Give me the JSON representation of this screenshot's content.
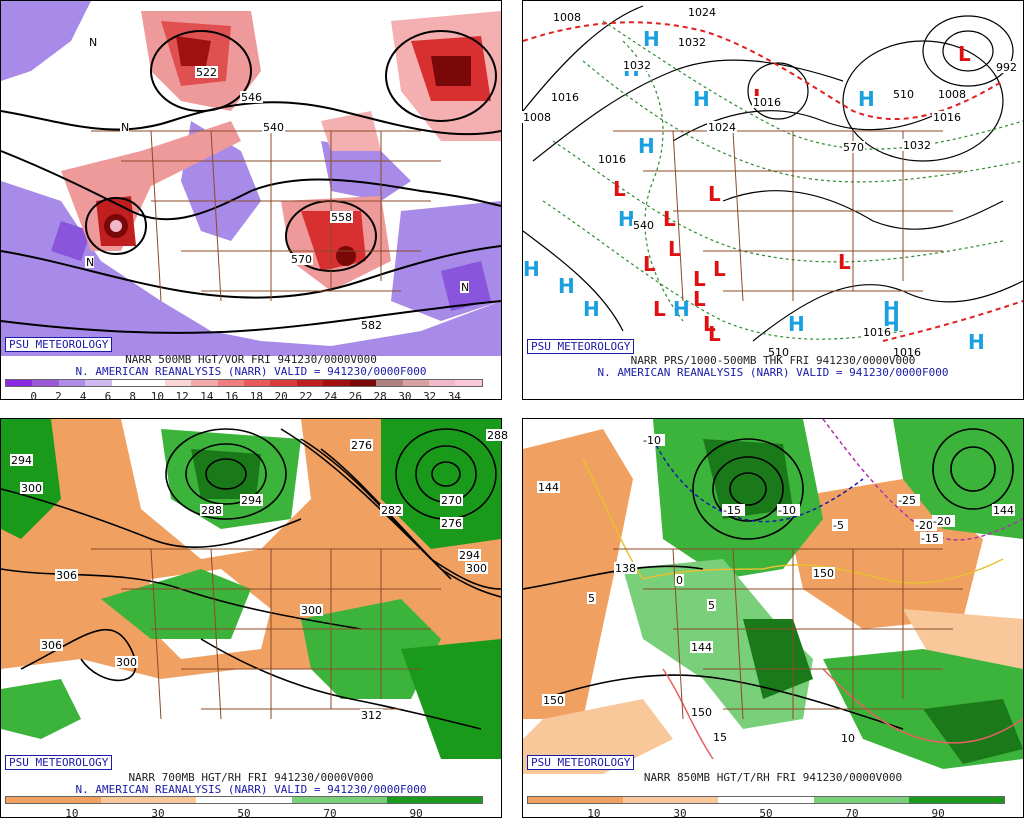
{
  "panels": [
    {
      "badge": "PSU METEOROLOGY",
      "title_line1": "NARR 500MB HGT/VOR FRI 941230/0000V000",
      "title_line2": "N. AMERICAN REANALYSIS (NARR) VALID = 941230/0000F000",
      "colorbar_labels": [
        "0",
        "2",
        "4",
        "6",
        "8",
        "10",
        "12",
        "14",
        "16",
        "18",
        "20",
        "22",
        "24",
        "26",
        "28",
        "30",
        "32",
        "34"
      ],
      "colorbar_colors": [
        "#8a2be2",
        "#9b59d6",
        "#b18be8",
        "#cdb8f0",
        "#ffffff",
        "#ffffff",
        "#f8d6d6",
        "#f4a9a9",
        "#ef7f7f",
        "#e85a5a",
        "#d93a3a",
        "#c01f1f",
        "#a01010",
        "#7a0808",
        "#b08080",
        "#d8a0a0",
        "#f0b8c8",
        "#f8c8d8"
      ],
      "contour_labels": [
        "546",
        "540",
        "522",
        "570",
        "558",
        "582",
        "N",
        "N",
        "N",
        "N"
      ]
    },
    {
      "badge": "PSU METEOROLOGY",
      "title_line1": "NARR PRS/1000-500MB THK FRI 941230/0000V000",
      "title_line2": "N. AMERICAN REANALYSIS (NARR) VALID = 941230/0000F000",
      "contour_labels": [
        "1008",
        "1032",
        "1032",
        "1016",
        "1024",
        "1008",
        "1016",
        "1024",
        "1016",
        "1016",
        "992",
        "1008",
        "1032",
        "540",
        "510",
        "570",
        "510",
        "1016",
        "1016"
      ],
      "high_marks": [
        "H",
        "H",
        "H",
        "H",
        "H",
        "H",
        "H",
        "H",
        "H",
        "H",
        "H",
        "H",
        "H",
        "H"
      ],
      "low_marks": [
        "L",
        "L",
        "L",
        "L",
        "L",
        "L",
        "L",
        "L",
        "L",
        "L",
        "L",
        "L",
        "L",
        "L"
      ]
    },
    {
      "badge": "PSU METEOROLOGY",
      "title_line1": "NARR 700MB HGT/RH FRI 941230/0000V000",
      "title_line2": "N. AMERICAN REANALYSIS (NARR) VALID = 941230/0000F000",
      "colorbar_labels": [
        "10",
        "30",
        "50",
        "70",
        "90"
      ],
      "colorbar_colors": [
        "#f0a060",
        "#f8c89a",
        "#ffffff",
        "#7ad07a",
        "#1a9a1a"
      ],
      "contour_labels": [
        "294",
        "300",
        "276",
        "288",
        "294",
        "282",
        "270",
        "276",
        "294",
        "300",
        "306",
        "300",
        "306",
        "300",
        "312",
        "288"
      ]
    },
    {
      "badge": "PSU METEOROLOGY",
      "title_line1": "NARR 850MB HGT/T/RH FRI 941230/0000V000",
      "colorbar_labels": [
        "10",
        "30",
        "50",
        "70",
        "90"
      ],
      "colorbar_colors": [
        "#f0a060",
        "#f8c89a",
        "#ffffff",
        "#7ad07a",
        "#1a9a1a"
      ],
      "contour_labels": [
        "144",
        "-10",
        "-15",
        "-10",
        "-5",
        "-25",
        "-20",
        "-15",
        "-20",
        "150",
        "144",
        "150",
        "150",
        "15",
        "5",
        "5",
        "0",
        "10",
        "138",
        "144"
      ]
    }
  ]
}
